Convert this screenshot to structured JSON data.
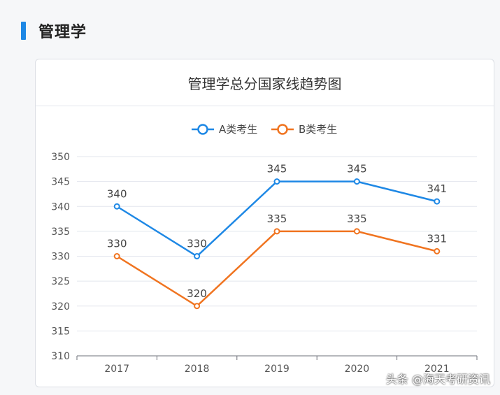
{
  "section": {
    "title": "管理学"
  },
  "chart_data": {
    "type": "line",
    "title": "管理学总分国家线趋势图",
    "categories": [
      "2017",
      "2018",
      "2019",
      "2020",
      "2021"
    ],
    "series": [
      {
        "name": "A类考生",
        "values": [
          340,
          330,
          345,
          345,
          341
        ],
        "color": "#1e88e5"
      },
      {
        "name": "B类考生",
        "values": [
          330,
          320,
          335,
          335,
          331
        ],
        "color": "#f07420"
      }
    ],
    "ylim": [
      310,
      350
    ],
    "yticks": [
      310,
      315,
      320,
      325,
      330,
      335,
      340,
      345,
      350
    ],
    "grid": true,
    "legend": "top-center",
    "xlabel": "",
    "ylabel": ""
  },
  "watermark": "头条 @海天考研资讯"
}
